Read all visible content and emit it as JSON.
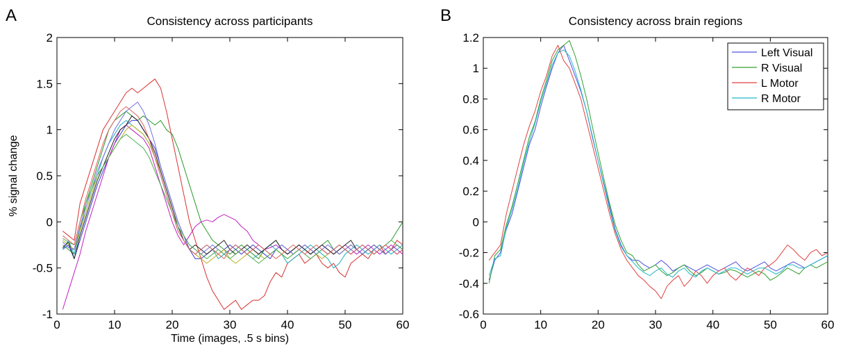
{
  "chart_data": [
    {
      "type": "line",
      "panel_label": "A",
      "title": "Consistency across participants",
      "xlabel": "Time (images, .5 s bins)",
      "ylabel": "% signal change",
      "xlim": [
        0,
        60
      ],
      "ylim": [
        -1,
        2
      ],
      "xticks": [
        0,
        10,
        20,
        30,
        40,
        50,
        60
      ],
      "yticks": [
        -1,
        -0.5,
        0,
        0.5,
        1,
        1.5,
        2
      ],
      "ytick_labels": [
        "-1",
        "-0.5",
        "0",
        "0.5",
        "1",
        "1.5",
        "2"
      ],
      "grid": false,
      "legend": false,
      "x_start": 1,
      "series": [
        {
          "color": "#3b3bd8",
          "values": [
            -0.3,
            -0.25,
            -0.4,
            -0.2,
            0.0,
            0.2,
            0.4,
            0.55,
            0.7,
            0.85,
            0.95,
            1.05,
            1.1,
            1.1,
            1.0,
            0.9,
            0.8,
            0.6,
            0.4,
            0.2,
            0.0,
            -0.15,
            -0.3,
            -0.4,
            -0.4,
            -0.35,
            -0.3,
            -0.35,
            -0.3,
            -0.25,
            -0.3,
            -0.35,
            -0.3,
            -0.25,
            -0.3,
            -0.35,
            -0.4,
            -0.3,
            -0.25,
            -0.3,
            -0.35,
            -0.3,
            -0.25,
            -0.3,
            -0.35,
            -0.3,
            -0.35,
            -0.3,
            -0.25,
            -0.3,
            -0.35,
            -0.3,
            -0.25,
            -0.3,
            -0.35,
            -0.3,
            -0.25,
            -0.3,
            -0.35,
            -0.3
          ]
        },
        {
          "color": "#2a9a2a",
          "values": [
            -0.25,
            -0.3,
            -0.35,
            -0.1,
            0.2,
            0.4,
            0.6,
            0.8,
            1.0,
            1.1,
            1.15,
            1.2,
            1.15,
            1.1,
            1.15,
            1.1,
            1.05,
            1.1,
            1.0,
            0.95,
            0.8,
            0.6,
            0.4,
            0.2,
            0.0,
            -0.1,
            -0.2,
            -0.25,
            -0.3,
            -0.35,
            -0.3,
            -0.25,
            -0.3,
            -0.35,
            -0.4,
            -0.3,
            -0.25,
            -0.2,
            -0.3,
            -0.35,
            -0.3,
            -0.25,
            -0.3,
            -0.35,
            -0.3,
            -0.25,
            -0.2,
            -0.3,
            -0.35,
            -0.3,
            -0.25,
            -0.3,
            -0.35,
            -0.3,
            -0.25,
            -0.3,
            -0.25,
            -0.2,
            -0.1,
            0.0
          ]
        },
        {
          "color": "#d83030",
          "values": [
            -0.1,
            -0.15,
            -0.2,
            0.2,
            0.4,
            0.6,
            0.8,
            1.0,
            1.1,
            1.2,
            1.3,
            1.4,
            1.45,
            1.4,
            1.45,
            1.5,
            1.55,
            1.45,
            1.2,
            0.9,
            0.6,
            0.3,
            0.0,
            -0.2,
            -0.4,
            -0.6,
            -0.75,
            -0.85,
            -0.95,
            -0.9,
            -0.85,
            -0.95,
            -0.9,
            -0.85,
            -0.85,
            -0.8,
            -0.65,
            -0.55,
            -0.6,
            -0.45,
            -0.4,
            -0.35,
            -0.45,
            -0.4,
            -0.35,
            -0.45,
            -0.5,
            -0.45,
            -0.55,
            -0.6,
            -0.45,
            -0.4,
            -0.35,
            -0.4,
            -0.3,
            -0.25,
            -0.35,
            -0.3,
            -0.2,
            -0.25
          ]
        },
        {
          "color": "#c020c0",
          "values": [
            -0.95,
            -0.75,
            -0.55,
            -0.35,
            -0.1,
            0.1,
            0.3,
            0.5,
            0.7,
            0.85,
            1.0,
            1.05,
            1.0,
            0.95,
            0.9,
            0.8,
            0.6,
            0.4,
            0.2,
            0.0,
            -0.15,
            -0.25,
            -0.15,
            -0.05,
            0.0,
            0.02,
            0.0,
            0.05,
            0.08,
            0.05,
            0.02,
            -0.05,
            -0.1,
            -0.2,
            -0.25,
            -0.3,
            -0.28,
            -0.25,
            -0.3,
            -0.35,
            -0.3,
            -0.25,
            -0.3,
            -0.35,
            -0.3,
            -0.25,
            -0.3,
            -0.35,
            -0.3,
            -0.25,
            -0.3,
            -0.35,
            -0.3,
            -0.25,
            -0.3,
            -0.35,
            -0.3,
            -0.25,
            -0.3,
            -0.35
          ]
        },
        {
          "color": "#20b0c0",
          "values": [
            -0.3,
            -0.2,
            -0.35,
            -0.05,
            0.1,
            0.3,
            0.5,
            0.7,
            0.85,
            0.95,
            1.05,
            1.1,
            1.05,
            1.0,
            0.95,
            0.85,
            0.7,
            0.5,
            0.3,
            0.1,
            -0.1,
            -0.2,
            -0.3,
            -0.35,
            -0.3,
            -0.25,
            -0.3,
            -0.4,
            -0.35,
            -0.3,
            -0.25,
            -0.3,
            -0.35,
            -0.4,
            -0.35,
            -0.3,
            -0.25,
            -0.3,
            -0.35,
            -0.45,
            -0.4,
            -0.35,
            -0.3,
            -0.25,
            -0.3,
            -0.35,
            -0.4,
            -0.5,
            -0.45,
            -0.35,
            -0.3,
            -0.25,
            -0.3,
            -0.35,
            -0.3,
            -0.25,
            -0.3,
            -0.35,
            -0.3,
            -0.25
          ]
        },
        {
          "color": "#b8b020",
          "values": [
            -0.2,
            -0.25,
            -0.3,
            -0.1,
            0.1,
            0.3,
            0.5,
            0.6,
            0.7,
            0.8,
            0.9,
            1.0,
            1.05,
            1.0,
            0.95,
            0.85,
            0.7,
            0.55,
            0.35,
            0.15,
            -0.05,
            -0.2,
            -0.3,
            -0.35,
            -0.4,
            -0.45,
            -0.4,
            -0.35,
            -0.3,
            -0.4,
            -0.45,
            -0.4,
            -0.35,
            -0.3,
            -0.35,
            -0.4,
            -0.35,
            -0.3,
            -0.35,
            -0.4,
            -0.35,
            -0.3,
            -0.25,
            -0.3,
            -0.35,
            -0.4,
            -0.35,
            -0.3,
            -0.35,
            -0.3,
            -0.25,
            -0.3,
            -0.35,
            -0.3,
            -0.25,
            -0.3,
            -0.35,
            -0.3,
            -0.25,
            -0.3
          ]
        },
        {
          "color": "#222222",
          "values": [
            -0.28,
            -0.22,
            -0.4,
            -0.15,
            0.05,
            0.25,
            0.45,
            0.6,
            0.75,
            0.9,
            1.0,
            1.05,
            1.15,
            1.1,
            1.0,
            0.9,
            0.75,
            0.55,
            0.35,
            0.15,
            -0.05,
            -0.2,
            -0.3,
            -0.25,
            -0.3,
            -0.35,
            -0.3,
            -0.25,
            -0.2,
            -0.3,
            -0.35,
            -0.3,
            -0.25,
            -0.3,
            -0.35,
            -0.3,
            -0.25,
            -0.2,
            -0.3,
            -0.35,
            -0.3,
            -0.25,
            -0.3,
            -0.35,
            -0.3,
            -0.25,
            -0.3,
            -0.35,
            -0.3,
            -0.25,
            -0.2,
            -0.3,
            -0.35,
            -0.3,
            -0.25,
            -0.3,
            -0.35,
            -0.3,
            -0.25,
            -0.3
          ]
        },
        {
          "color": "#7070e0",
          "values": [
            -0.22,
            -0.28,
            -0.3,
            -0.05,
            0.15,
            0.35,
            0.55,
            0.7,
            0.85,
            1.0,
            1.1,
            1.2,
            1.25,
            1.3,
            1.2,
            1.05,
            0.85,
            0.6,
            0.4,
            0.2,
            0.0,
            -0.15,
            -0.25,
            -0.3,
            -0.35,
            -0.3,
            -0.25,
            -0.3,
            -0.35,
            -0.3,
            -0.25,
            -0.3,
            -0.35,
            -0.3,
            -0.25,
            -0.3,
            -0.35,
            -0.3,
            -0.25,
            -0.3,
            -0.35,
            -0.3,
            -0.25,
            -0.3,
            -0.35,
            -0.3,
            -0.25,
            -0.3,
            -0.35,
            -0.3,
            -0.25,
            -0.3,
            -0.35,
            -0.3,
            -0.25,
            -0.3,
            -0.35,
            -0.3,
            -0.25,
            -0.3
          ]
        },
        {
          "color": "#50b050",
          "values": [
            -0.18,
            -0.22,
            -0.25,
            0.0,
            0.2,
            0.35,
            0.5,
            0.6,
            0.7,
            0.8,
            0.9,
            0.95,
            0.9,
            0.85,
            0.8,
            0.7,
            0.55,
            0.4,
            0.25,
            0.1,
            -0.05,
            -0.15,
            -0.25,
            -0.3,
            -0.35,
            -0.4,
            -0.35,
            -0.3,
            -0.35,
            -0.4,
            -0.35,
            -0.3,
            -0.35,
            -0.4,
            -0.45,
            -0.4,
            -0.35,
            -0.3,
            -0.35,
            -0.4,
            -0.35,
            -0.3,
            -0.35,
            -0.4,
            -0.35,
            -0.3,
            -0.35,
            -0.3,
            -0.25,
            -0.3,
            -0.35,
            -0.3,
            -0.25,
            -0.3,
            -0.35,
            -0.3,
            -0.25,
            -0.2,
            -0.25,
            -0.3
          ]
        },
        {
          "color": "#e06060",
          "values": [
            -0.15,
            -0.2,
            -0.25,
            0.0,
            0.25,
            0.45,
            0.65,
            0.85,
            1.0,
            1.1,
            1.2,
            1.25,
            1.2,
            1.15,
            1.05,
            0.9,
            0.7,
            0.5,
            0.3,
            0.1,
            -0.1,
            -0.2,
            -0.3,
            -0.35,
            -0.3,
            -0.25,
            -0.3,
            -0.35,
            -0.4,
            -0.3,
            -0.25,
            -0.3,
            -0.35,
            -0.3,
            -0.25,
            -0.3,
            -0.35,
            -0.4,
            -0.35,
            -0.3,
            -0.25,
            -0.3,
            -0.35,
            -0.3,
            -0.25,
            -0.3,
            -0.35,
            -0.3,
            -0.25,
            -0.3,
            -0.35,
            -0.3,
            -0.25,
            -0.3,
            -0.35,
            -0.3,
            -0.25,
            -0.3,
            -0.35,
            -0.3
          ]
        }
      ]
    },
    {
      "type": "line",
      "panel_label": "B",
      "title": "Consistency across brain regions",
      "xlabel": "",
      "ylabel": "",
      "xlim": [
        0,
        60
      ],
      "ylim": [
        -0.6,
        1.2
      ],
      "xticks": [
        0,
        10,
        20,
        30,
        40,
        50,
        60
      ],
      "yticks": [
        -0.6,
        -0.4,
        -0.2,
        0,
        0.2,
        0.4,
        0.6,
        0.8,
        1,
        1.2
      ],
      "ytick_labels": [
        "-0.6",
        "-0.4",
        "-0.2",
        "0",
        "0.2",
        "0.4",
        "0.6",
        "0.8",
        "1",
        "1.2"
      ],
      "grid": false,
      "legend": true,
      "legend_position": "top-right",
      "x_start": 1,
      "series": [
        {
          "name": "Left Visual",
          "color": "#5050e0",
          "values": [
            -0.38,
            -0.25,
            -0.2,
            -0.05,
            0.05,
            0.2,
            0.35,
            0.5,
            0.6,
            0.75,
            0.88,
            1.0,
            1.1,
            1.15,
            1.05,
            0.95,
            0.85,
            0.72,
            0.55,
            0.4,
            0.25,
            0.1,
            -0.05,
            -0.15,
            -0.22,
            -0.25,
            -0.25,
            -0.28,
            -0.3,
            -0.28,
            -0.25,
            -0.28,
            -0.32,
            -0.3,
            -0.28,
            -0.3,
            -0.32,
            -0.3,
            -0.28,
            -0.3,
            -0.32,
            -0.3,
            -0.28,
            -0.26,
            -0.3,
            -0.32,
            -0.3,
            -0.28,
            -0.26,
            -0.3,
            -0.32,
            -0.3,
            -0.28,
            -0.26,
            -0.28,
            -0.3,
            -0.28,
            -0.26,
            -0.24,
            -0.22
          ]
        },
        {
          "name": "R Visual",
          "color": "#30a030",
          "values": [
            -0.4,
            -0.22,
            -0.18,
            -0.02,
            0.1,
            0.25,
            0.4,
            0.55,
            0.65,
            0.8,
            0.92,
            1.05,
            1.12,
            1.15,
            1.18,
            1.08,
            0.95,
            0.8,
            0.62,
            0.45,
            0.28,
            0.12,
            -0.02,
            -0.12,
            -0.2,
            -0.22,
            -0.28,
            -0.32,
            -0.3,
            -0.28,
            -0.32,
            -0.35,
            -0.33,
            -0.3,
            -0.28,
            -0.32,
            -0.35,
            -0.33,
            -0.3,
            -0.32,
            -0.34,
            -0.33,
            -0.31,
            -0.32,
            -0.34,
            -0.36,
            -0.34,
            -0.32,
            -0.34,
            -0.38,
            -0.36,
            -0.33,
            -0.3,
            -0.32,
            -0.34,
            -0.3,
            -0.28,
            -0.3,
            -0.28,
            -0.26
          ]
        },
        {
          "name": "L Motor",
          "color": "#e04040",
          "values": [
            -0.25,
            -0.2,
            -0.15,
            0.05,
            0.2,
            0.35,
            0.5,
            0.62,
            0.72,
            0.85,
            0.95,
            1.08,
            1.15,
            1.05,
            1.0,
            0.9,
            0.8,
            0.65,
            0.5,
            0.35,
            0.2,
            0.05,
            -0.08,
            -0.18,
            -0.25,
            -0.3,
            -0.35,
            -0.38,
            -0.42,
            -0.45,
            -0.5,
            -0.42,
            -0.38,
            -0.35,
            -0.42,
            -0.38,
            -0.32,
            -0.35,
            -0.4,
            -0.35,
            -0.32,
            -0.3,
            -0.35,
            -0.38,
            -0.34,
            -0.3,
            -0.32,
            -0.35,
            -0.3,
            -0.28,
            -0.25,
            -0.2,
            -0.15,
            -0.18,
            -0.22,
            -0.25,
            -0.2,
            -0.18,
            -0.22,
            -0.2
          ]
        },
        {
          "name": "R Motor",
          "color": "#20b8c8",
          "values": [
            -0.35,
            -0.24,
            -0.22,
            -0.04,
            0.08,
            0.22,
            0.38,
            0.52,
            0.64,
            0.78,
            0.9,
            1.02,
            1.1,
            1.12,
            1.08,
            0.98,
            0.86,
            0.72,
            0.56,
            0.4,
            0.24,
            0.08,
            -0.06,
            -0.16,
            -0.22,
            -0.26,
            -0.3,
            -0.33,
            -0.35,
            -0.32,
            -0.3,
            -0.34,
            -0.36,
            -0.32,
            -0.3,
            -0.34,
            -0.36,
            -0.32,
            -0.3,
            -0.32,
            -0.34,
            -0.32,
            -0.3,
            -0.3,
            -0.32,
            -0.34,
            -0.32,
            -0.3,
            -0.3,
            -0.32,
            -0.34,
            -0.32,
            -0.28,
            -0.28,
            -0.3,
            -0.3,
            -0.28,
            -0.26,
            -0.24,
            -0.22
          ]
        }
      ]
    }
  ]
}
